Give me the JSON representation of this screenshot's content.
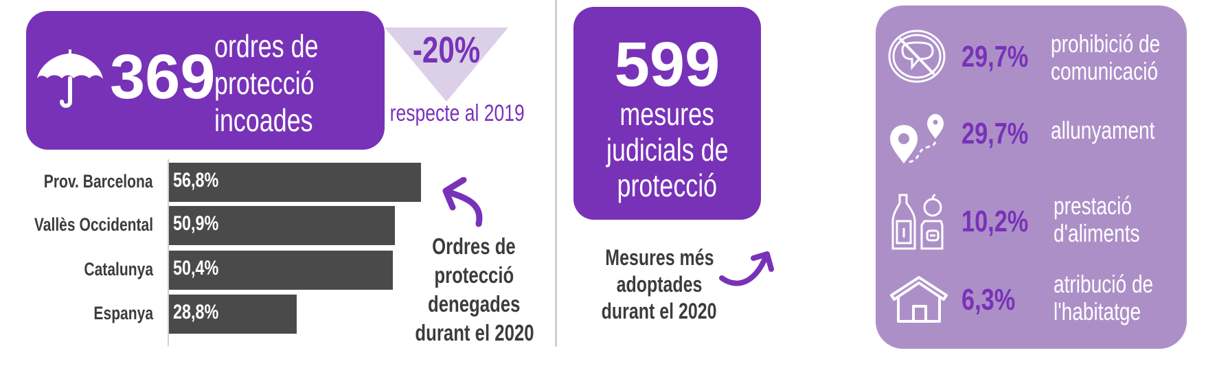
{
  "colors": {
    "purple": "#7832b8",
    "panel": "#ad8fc8",
    "triangle": "#dcd0e8",
    "bar": "#4a4a4a",
    "text": "#3c3c3c"
  },
  "orders": {
    "icon": "umbrella-icon",
    "count": "369",
    "label_lines": [
      "ordres de",
      "protecció",
      "incoades"
    ]
  },
  "change": {
    "value": "-20%",
    "caption": "respecte al 2019",
    "icon": "down-triangle-icon"
  },
  "denied_note": [
    "Ordres de",
    "protecció",
    "denegades",
    "durant el 2020"
  ],
  "measures": {
    "count": "599",
    "label_lines": [
      "mesures",
      "judicials de",
      "protecció"
    ]
  },
  "measures_note": [
    "Mesures més",
    "adoptades",
    "durant el 2020"
  ],
  "top_measures": [
    {
      "icon": "no-communication-icon",
      "pct": "29,7%",
      "lines": [
        "prohibició de",
        "comunicació"
      ]
    },
    {
      "icon": "location-route-icon",
      "pct": "29,7%",
      "lines": [
        "allunyament"
      ]
    },
    {
      "icon": "food-groceries-icon",
      "pct": "10,2%",
      "lines": [
        "prestació",
        "d'aliments"
      ]
    },
    {
      "icon": "house-icon",
      "pct": "6,3%",
      "lines": [
        "atribució de",
        "l'habitatge"
      ]
    }
  ],
  "chart_data": {
    "type": "bar",
    "orientation": "horizontal",
    "title": "Ordres de protecció denegades durant el 2020",
    "categories": [
      "Prov. Barcelona",
      "Vallès Occidental",
      "Catalunya",
      "Espanya"
    ],
    "values": [
      56.8,
      50.9,
      50.4,
      28.8
    ],
    "value_labels": [
      "56,8%",
      "50,9%",
      "50,4%",
      "28,8%"
    ],
    "xlabel": "",
    "ylabel": "",
    "xlim": [
      0,
      100
    ],
    "grid": false
  }
}
